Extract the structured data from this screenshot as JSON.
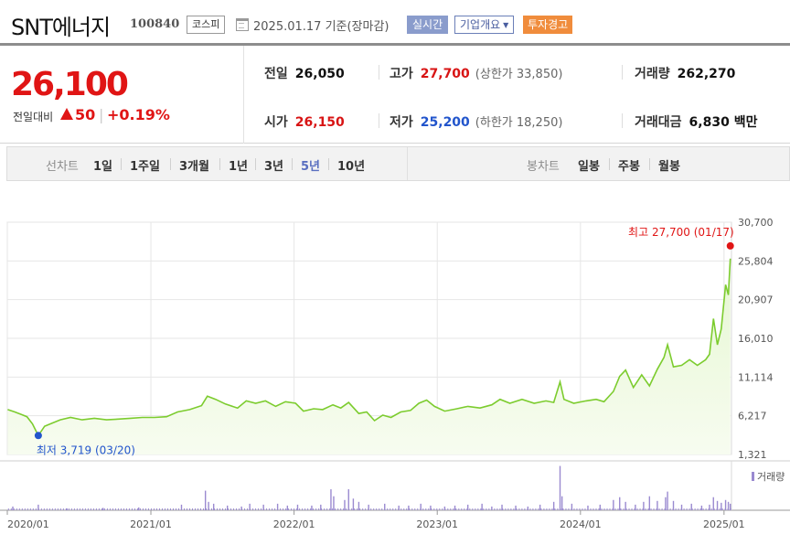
{
  "header": {
    "stock_name": "SNT에너지",
    "stock_code": "100840",
    "market": "코스피",
    "base_date": "2025.01.17 기준(장마감)",
    "realtime_label": "실시간",
    "company_info_label": "기업개요",
    "warning_label": "투자경고"
  },
  "quote": {
    "current_price": "26,100",
    "change_label": "전일대비",
    "change_value": "50",
    "change_pct": "+0.19%",
    "prev_close": {
      "label": "전일",
      "value": "26,050"
    },
    "open": {
      "label": "시가",
      "value": "26,150"
    },
    "high": {
      "label": "고가",
      "value": "27,700",
      "sub": "(상한가 33,850)"
    },
    "low": {
      "label": "저가",
      "value": "25,200",
      "sub": "(하한가 18,250)"
    },
    "volume": {
      "label": "거래량",
      "value": "262,270"
    },
    "trade_value": {
      "label": "거래대금",
      "value": "6,830 백만"
    }
  },
  "chart_tabs": {
    "line_label": "선차트",
    "line_periods": [
      "1일",
      "1주일",
      "3개월",
      "1년",
      "3년",
      "5년",
      "10년"
    ],
    "active_period": "5년",
    "candle_label": "봉차트",
    "candle_periods": [
      "일봉",
      "주봉",
      "월봉"
    ]
  },
  "colors": {
    "up": "#e01515",
    "down": "#2255cc",
    "line": "#7ccc2e",
    "area": "#e6f7d2",
    "volume": "#9a8ad0"
  },
  "chart_data": {
    "type": "area",
    "title": "",
    "y_ticks": [
      "30,700",
      "25,804",
      "20,907",
      "16,010",
      "11,114",
      "6,217",
      "1,321"
    ],
    "ylim": [
      1321,
      30700
    ],
    "x_ticks": [
      "2020/01",
      "2021/01",
      "2022/01",
      "2023/01",
      "2024/01",
      "2025/01"
    ],
    "x_tick_years": [
      2020,
      2021,
      2022,
      2023,
      2024,
      2025
    ],
    "high_annotation": {
      "label": "최고 27,700 (01/17)",
      "date": "2025-01-17",
      "value": 27700
    },
    "low_annotation": {
      "label": "최저 3,719 (03/20)",
      "date": "2020-03-20",
      "value": 3719
    },
    "volume_legend": "거래량",
    "series": [
      {
        "type": "price",
        "points": [
          [
            "2020-01-02",
            7000
          ],
          [
            "2020-01-20",
            6700
          ],
          [
            "2020-02-05",
            6400
          ],
          [
            "2020-02-20",
            6100
          ],
          [
            "2020-03-05",
            5200
          ],
          [
            "2020-03-20",
            3719
          ],
          [
            "2020-04-05",
            4900
          ],
          [
            "2020-04-25",
            5300
          ],
          [
            "2020-05-15",
            5700
          ],
          [
            "2020-06-10",
            6000
          ],
          [
            "2020-07-10",
            5700
          ],
          [
            "2020-08-10",
            5900
          ],
          [
            "2020-09-10",
            5700
          ],
          [
            "2020-10-10",
            5800
          ],
          [
            "2020-11-10",
            5900
          ],
          [
            "2020-12-10",
            6000
          ],
          [
            "2021-01-10",
            6000
          ],
          [
            "2021-02-10",
            6100
          ],
          [
            "2021-03-10",
            6700
          ],
          [
            "2021-04-10",
            7000
          ],
          [
            "2021-05-10",
            7500
          ],
          [
            "2021-05-25",
            8700
          ],
          [
            "2021-06-15",
            8300
          ],
          [
            "2021-07-10",
            7700
          ],
          [
            "2021-08-10",
            7200
          ],
          [
            "2021-09-01",
            8100
          ],
          [
            "2021-09-25",
            7800
          ],
          [
            "2021-10-20",
            8100
          ],
          [
            "2021-11-15",
            7400
          ],
          [
            "2021-12-10",
            8000
          ],
          [
            "2022-01-05",
            7800
          ],
          [
            "2022-01-25",
            6800
          ],
          [
            "2022-02-20",
            7100
          ],
          [
            "2022-03-15",
            7000
          ],
          [
            "2022-04-10",
            7600
          ],
          [
            "2022-04-30",
            7200
          ],
          [
            "2022-05-20",
            7900
          ],
          [
            "2022-06-15",
            6500
          ],
          [
            "2022-07-05",
            6700
          ],
          [
            "2022-07-25",
            5600
          ],
          [
            "2022-08-15",
            6300
          ],
          [
            "2022-09-05",
            6000
          ],
          [
            "2022-09-30",
            6700
          ],
          [
            "2022-10-25",
            6900
          ],
          [
            "2022-11-15",
            7800
          ],
          [
            "2022-12-05",
            8200
          ],
          [
            "2022-12-25",
            7400
          ],
          [
            "2023-01-20",
            6800
          ],
          [
            "2023-02-20",
            7100
          ],
          [
            "2023-03-20",
            7400
          ],
          [
            "2023-04-20",
            7200
          ],
          [
            "2023-05-20",
            7600
          ],
          [
            "2023-06-10",
            8300
          ],
          [
            "2023-07-05",
            7800
          ],
          [
            "2023-08-05",
            8300
          ],
          [
            "2023-09-05",
            7800
          ],
          [
            "2023-10-05",
            8100
          ],
          [
            "2023-10-25",
            7900
          ],
          [
            "2023-11-10",
            10500
          ],
          [
            "2023-11-20",
            8300
          ],
          [
            "2023-12-15",
            7800
          ],
          [
            "2024-01-15",
            8100
          ],
          [
            "2024-02-10",
            8300
          ],
          [
            "2024-03-01",
            8000
          ],
          [
            "2024-03-25",
            9300
          ],
          [
            "2024-04-10",
            11200
          ],
          [
            "2024-04-25",
            12000
          ],
          [
            "2024-05-15",
            9800
          ],
          [
            "2024-06-05",
            11400
          ],
          [
            "2024-06-25",
            10000
          ],
          [
            "2024-07-15",
            12100
          ],
          [
            "2024-08-01",
            13600
          ],
          [
            "2024-08-10",
            15200
          ],
          [
            "2024-08-25",
            12400
          ],
          [
            "2024-09-15",
            12600
          ],
          [
            "2024-10-05",
            13300
          ],
          [
            "2024-10-25",
            12600
          ],
          [
            "2024-11-15",
            13300
          ],
          [
            "2024-11-25",
            14000
          ],
          [
            "2024-12-05",
            18500
          ],
          [
            "2024-12-15",
            15200
          ],
          [
            "2024-12-25",
            17200
          ],
          [
            "2025-01-05",
            22800
          ],
          [
            "2025-01-12",
            21500
          ],
          [
            "2025-01-17",
            26100
          ]
        ]
      },
      {
        "type": "volume",
        "points": [
          [
            "2020-01-15",
            0.08
          ],
          [
            "2020-03-20",
            0.12
          ],
          [
            "2020-06-01",
            0.04
          ],
          [
            "2020-09-01",
            0.05
          ],
          [
            "2020-12-01",
            0.06
          ],
          [
            "2021-03-20",
            0.12
          ],
          [
            "2021-05-20",
            0.42
          ],
          [
            "2021-05-28",
            0.18
          ],
          [
            "2021-06-10",
            0.14
          ],
          [
            "2021-07-15",
            0.1
          ],
          [
            "2021-08-20",
            0.08
          ],
          [
            "2021-09-10",
            0.14
          ],
          [
            "2021-10-15",
            0.12
          ],
          [
            "2021-11-20",
            0.14
          ],
          [
            "2021-12-15",
            0.1
          ],
          [
            "2022-01-10",
            0.12
          ],
          [
            "2022-02-15",
            0.1
          ],
          [
            "2022-03-10",
            0.12
          ],
          [
            "2022-04-05",
            0.45
          ],
          [
            "2022-04-12",
            0.3
          ],
          [
            "2022-05-10",
            0.22
          ],
          [
            "2022-05-20",
            0.45
          ],
          [
            "2022-06-01",
            0.25
          ],
          [
            "2022-06-15",
            0.18
          ],
          [
            "2022-07-10",
            0.12
          ],
          [
            "2022-08-20",
            0.14
          ],
          [
            "2022-09-25",
            0.1
          ],
          [
            "2022-10-20",
            0.1
          ],
          [
            "2022-11-20",
            0.14
          ],
          [
            "2022-12-15",
            0.1
          ],
          [
            "2023-01-20",
            0.08
          ],
          [
            "2023-02-15",
            0.1
          ],
          [
            "2023-03-20",
            0.12
          ],
          [
            "2023-04-25",
            0.14
          ],
          [
            "2023-05-20",
            0.08
          ],
          [
            "2023-06-15",
            0.12
          ],
          [
            "2023-07-20",
            0.1
          ],
          [
            "2023-08-20",
            0.08
          ],
          [
            "2023-09-20",
            0.12
          ],
          [
            "2023-10-25",
            0.18
          ],
          [
            "2023-11-10",
            0.95
          ],
          [
            "2023-11-15",
            0.3
          ],
          [
            "2023-12-10",
            0.14
          ],
          [
            "2024-01-20",
            0.1
          ],
          [
            "2024-02-20",
            0.12
          ],
          [
            "2024-03-25",
            0.22
          ],
          [
            "2024-04-10",
            0.28
          ],
          [
            "2024-04-25",
            0.18
          ],
          [
            "2024-05-20",
            0.12
          ],
          [
            "2024-06-10",
            0.18
          ],
          [
            "2024-06-25",
            0.3
          ],
          [
            "2024-07-15",
            0.2
          ],
          [
            "2024-08-05",
            0.28
          ],
          [
            "2024-08-10",
            0.4
          ],
          [
            "2024-08-25",
            0.2
          ],
          [
            "2024-09-15",
            0.12
          ],
          [
            "2024-10-10",
            0.14
          ],
          [
            "2024-11-05",
            0.1
          ],
          [
            "2024-11-25",
            0.12
          ],
          [
            "2024-12-05",
            0.28
          ],
          [
            "2024-12-15",
            0.2
          ],
          [
            "2024-12-25",
            0.16
          ],
          [
            "2025-01-05",
            0.22
          ],
          [
            "2025-01-12",
            0.18
          ],
          [
            "2025-01-17",
            0.14
          ]
        ]
      }
    ]
  }
}
